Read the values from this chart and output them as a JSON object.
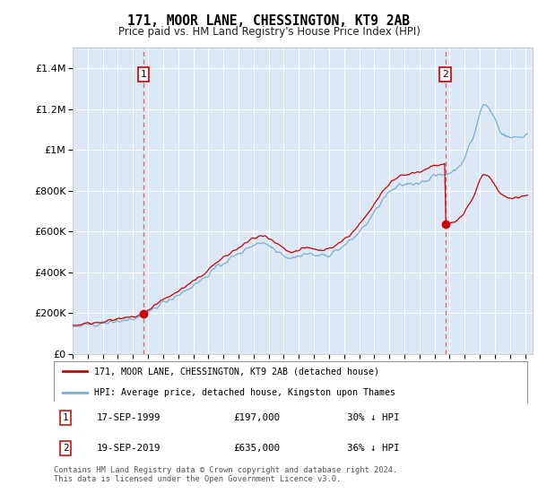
{
  "title": "171, MOOR LANE, CHESSINGTON, KT9 2AB",
  "subtitle": "Price paid vs. HM Land Registry's House Price Index (HPI)",
  "legend_line1": "171, MOOR LANE, CHESSINGTON, KT9 2AB (detached house)",
  "legend_line2": "HPI: Average price, detached house, Kingston upon Thames",
  "annotation1_label": "1",
  "annotation1_date": "17-SEP-1999",
  "annotation1_price": "£197,000",
  "annotation1_hpi": "30% ↓ HPI",
  "annotation2_label": "2",
  "annotation2_date": "19-SEP-2019",
  "annotation2_price": "£635,000",
  "annotation2_hpi": "36% ↓ HPI",
  "footer": "Contains HM Land Registry data © Crown copyright and database right 2024.\nThis data is licensed under the Open Government Licence v3.0.",
  "hpi_color": "#7bafd4",
  "price_color": "#cc0000",
  "vline_color": "#e06060",
  "background_color": "#dce8f5",
  "ylim": [
    0,
    1500000
  ],
  "yticks": [
    0,
    200000,
    400000,
    600000,
    800000,
    1000000,
    1200000,
    1400000
  ],
  "xlim_start": 1995.0,
  "xlim_end": 2025.5,
  "transaction1_x": 1999.71,
  "transaction1_y": 197000,
  "transaction2_x": 2019.71,
  "transaction2_y": 635000,
  "xtick_years": [
    1995,
    1996,
    1997,
    1998,
    1999,
    2000,
    2001,
    2002,
    2003,
    2004,
    2005,
    2006,
    2007,
    2008,
    2009,
    2010,
    2011,
    2012,
    2013,
    2014,
    2015,
    2016,
    2017,
    2018,
    2019,
    2020,
    2021,
    2022,
    2023,
    2024,
    2025
  ]
}
